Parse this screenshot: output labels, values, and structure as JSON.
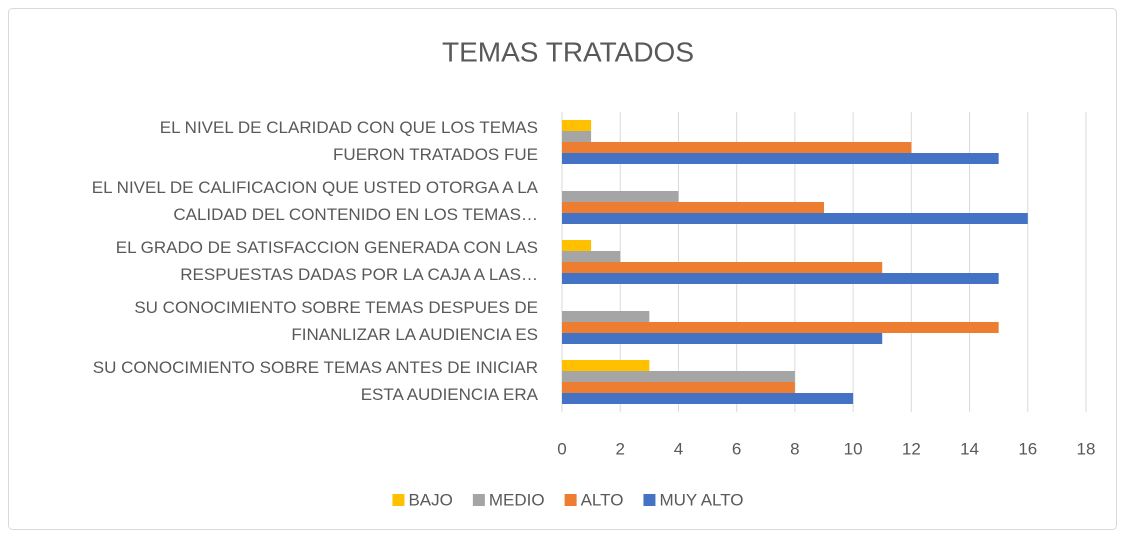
{
  "chart_data": {
    "type": "bar",
    "orientation": "horizontal",
    "title": "TEMAS TRATADOS",
    "categories": [
      [
        "EL NIVEL DE CLARIDAD CON QUE LOS TEMAS",
        "FUERON TRATADOS FUE"
      ],
      [
        "EL NIVEL DE CALIFICACION QUE USTED OTORGA A LA",
        "CALIDAD DEL CONTENIDO EN LOS TEMAS…"
      ],
      [
        "EL GRADO DE SATISFACCION GENERADA CON LAS",
        "RESPUESTAS DADAS POR LA CAJA A LAS…"
      ],
      [
        "SU CONOCIMIENTO SOBRE TEMAS DESPUES DE",
        "FINANLIZAR LA AUDIENCIA ES"
      ],
      [
        "SU CONOCIMIENTO SOBRE TEMAS ANTES DE INICIAR",
        "ESTA AUDIENCIA ERA"
      ]
    ],
    "series": [
      {
        "name": "BAJO",
        "color": "#ffc000",
        "values": [
          1,
          0,
          1,
          0,
          3
        ]
      },
      {
        "name": "MEDIO",
        "color": "#a5a5a5",
        "values": [
          1,
          4,
          2,
          3,
          8
        ]
      },
      {
        "name": "ALTO",
        "color": "#ed7d31",
        "values": [
          12,
          9,
          11,
          15,
          8
        ]
      },
      {
        "name": "MUY ALTO",
        "color": "#4472c4",
        "values": [
          15,
          16,
          15,
          11,
          10
        ]
      }
    ],
    "xlim": [
      0,
      18
    ],
    "xticks": [
      0,
      2,
      4,
      6,
      8,
      10,
      12,
      14,
      16,
      18
    ],
    "grid": true,
    "legend": "bottom"
  }
}
